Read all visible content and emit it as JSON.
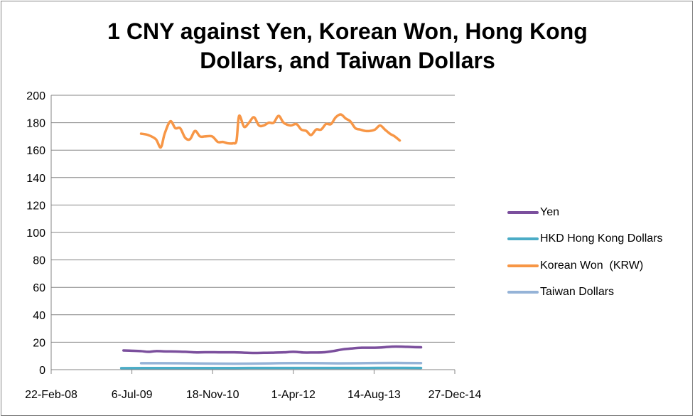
{
  "chart_data": {
    "type": "line",
    "title": "1 CNY against Yen, Korean Won, Hong Kong Dollars, and Taiwan Dollars",
    "title_lines": [
      "1 CNY against Yen, Korean Won, Hong Kong",
      "Dollars, and Taiwan Dollars"
    ],
    "xlabel": "",
    "ylabel": "",
    "ylim": [
      0,
      200
    ],
    "yticks": [
      0,
      20,
      40,
      60,
      80,
      100,
      120,
      140,
      160,
      180,
      200
    ],
    "xlim": [
      "2008-02-22",
      "2014-12-27"
    ],
    "xticks": [
      {
        "date": "2008-02-22",
        "label": "22-Feb-08"
      },
      {
        "date": "2009-07-06",
        "label": "6-Jul-09"
      },
      {
        "date": "2010-11-18",
        "label": "18-Nov-10"
      },
      {
        "date": "2012-04-01",
        "label": "1-Apr-12"
      },
      {
        "date": "2013-08-14",
        "label": "14-Aug-13"
      },
      {
        "date": "2014-12-27",
        "label": "27-Dec-14"
      }
    ],
    "grid": {
      "horizontal": true,
      "vertical": false
    },
    "legend_position": "right",
    "series": [
      {
        "name": "Yen",
        "color": "#7b4f9d",
        "points": [
          [
            "2009-05-15",
            14.0
          ],
          [
            "2009-07-01",
            13.8
          ],
          [
            "2009-09-01",
            13.5
          ],
          [
            "2009-10-15",
            13.0
          ],
          [
            "2009-12-01",
            13.5
          ],
          [
            "2010-02-01",
            13.3
          ],
          [
            "2010-04-01",
            13.2
          ],
          [
            "2010-06-01",
            13.0
          ],
          [
            "2010-08-01",
            12.6
          ],
          [
            "2010-10-01",
            12.7
          ],
          [
            "2010-12-01",
            12.7
          ],
          [
            "2011-02-01",
            12.6
          ],
          [
            "2011-04-01",
            12.6
          ],
          [
            "2011-06-01",
            12.4
          ],
          [
            "2011-08-01",
            12.2
          ],
          [
            "2011-10-01",
            12.3
          ],
          [
            "2011-12-01",
            12.4
          ],
          [
            "2012-02-01",
            12.6
          ],
          [
            "2012-04-01",
            13.0
          ],
          [
            "2012-06-01",
            12.5
          ],
          [
            "2012-08-01",
            12.5
          ],
          [
            "2012-10-01",
            12.6
          ],
          [
            "2012-12-01",
            13.5
          ],
          [
            "2013-02-01",
            14.8
          ],
          [
            "2013-04-01",
            15.5
          ],
          [
            "2013-06-01",
            16.0
          ],
          [
            "2013-08-01",
            16.0
          ],
          [
            "2013-10-01",
            16.2
          ],
          [
            "2013-12-01",
            16.8
          ],
          [
            "2014-02-01",
            16.8
          ],
          [
            "2014-04-01",
            16.5
          ],
          [
            "2014-06-01",
            16.3
          ]
        ]
      },
      {
        "name": "HKD Hong Kong Dollars",
        "color": "#4bacc6",
        "points": [
          [
            "2009-05-01",
            1.13
          ],
          [
            "2010-01-01",
            1.14
          ],
          [
            "2010-07-01",
            1.15
          ],
          [
            "2011-01-01",
            1.18
          ],
          [
            "2011-07-01",
            1.2
          ],
          [
            "2012-01-01",
            1.23
          ],
          [
            "2012-07-01",
            1.22
          ],
          [
            "2013-01-01",
            1.25
          ],
          [
            "2013-07-01",
            1.26
          ],
          [
            "2014-01-01",
            1.27
          ],
          [
            "2014-06-01",
            1.26
          ]
        ]
      },
      {
        "name": "Korean Won  (KRW)",
        "color": "#f79646",
        "points": [
          [
            "2009-09-01",
            172
          ],
          [
            "2009-10-15",
            171
          ],
          [
            "2009-12-01",
            168
          ],
          [
            "2010-01-01",
            162
          ],
          [
            "2010-01-25",
            172
          ],
          [
            "2010-03-01",
            181
          ],
          [
            "2010-04-01",
            176
          ],
          [
            "2010-05-01",
            176
          ],
          [
            "2010-06-01",
            169
          ],
          [
            "2010-07-01",
            168
          ],
          [
            "2010-08-01",
            174
          ],
          [
            "2010-09-01",
            170
          ],
          [
            "2010-10-01",
            170
          ],
          [
            "2010-11-15",
            170
          ],
          [
            "2010-12-20",
            166
          ],
          [
            "2011-01-20",
            166
          ],
          [
            "2011-02-20",
            165
          ],
          [
            "2011-03-25",
            165
          ],
          [
            "2011-04-15",
            167
          ],
          [
            "2011-05-01",
            185
          ],
          [
            "2011-06-01",
            177
          ],
          [
            "2011-07-01",
            180
          ],
          [
            "2011-08-01",
            184
          ],
          [
            "2011-09-01",
            178
          ],
          [
            "2011-10-01",
            178
          ],
          [
            "2011-11-01",
            180
          ],
          [
            "2011-12-01",
            180
          ],
          [
            "2012-01-01",
            185
          ],
          [
            "2012-02-01",
            180
          ],
          [
            "2012-03-15",
            178
          ],
          [
            "2012-04-20",
            179
          ],
          [
            "2012-05-20",
            175
          ],
          [
            "2012-06-20",
            174
          ],
          [
            "2012-07-20",
            171
          ],
          [
            "2012-08-20",
            175
          ],
          [
            "2012-09-20",
            175
          ],
          [
            "2012-10-20",
            179
          ],
          [
            "2012-11-20",
            179
          ],
          [
            "2012-12-20",
            184
          ],
          [
            "2013-01-20",
            186
          ],
          [
            "2013-02-20",
            183
          ],
          [
            "2013-03-20",
            181
          ],
          [
            "2013-04-20",
            176
          ],
          [
            "2013-05-20",
            175
          ],
          [
            "2013-06-20",
            174
          ],
          [
            "2013-07-20",
            174
          ],
          [
            "2013-08-20",
            175
          ],
          [
            "2013-09-20",
            178
          ],
          [
            "2013-10-20",
            175
          ],
          [
            "2013-11-20",
            172
          ],
          [
            "2013-12-20",
            170
          ],
          [
            "2014-01-20",
            167
          ]
        ]
      },
      {
        "name": "Taiwan Dollars",
        "color": "#95b3d7",
        "points": [
          [
            "2009-09-01",
            4.7
          ],
          [
            "2010-01-01",
            4.7
          ],
          [
            "2010-07-01",
            4.6
          ],
          [
            "2011-01-01",
            4.4
          ],
          [
            "2011-07-01",
            4.4
          ],
          [
            "2012-01-01",
            4.7
          ],
          [
            "2012-07-01",
            4.8
          ],
          [
            "2013-01-01",
            4.6
          ],
          [
            "2013-07-01",
            4.8
          ],
          [
            "2014-01-01",
            4.9
          ],
          [
            "2014-06-01",
            4.8
          ]
        ]
      }
    ]
  }
}
